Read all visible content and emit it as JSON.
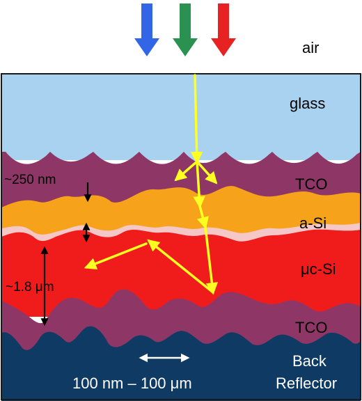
{
  "labels": {
    "air": "air",
    "glass": "glass",
    "tco_top": "TCO",
    "a_si": "a-Si",
    "uc_si": "μc-Si",
    "tco_bottom": "TCO",
    "back_reflector_line1": "Back",
    "back_reflector_line2": "Reflector",
    "tco_texture": "~250 nm",
    "uc_si_thickness": "~1.8 μm",
    "feature_size": "100 nm – 100 μm"
  },
  "incident_light": [
    {
      "name": "blue",
      "color": "#3366e6"
    },
    {
      "name": "green",
      "color": "#2b9150"
    },
    {
      "name": "red",
      "color": "#e62222"
    }
  ],
  "colors": {
    "glass": "#a8d2f0",
    "tco": "#8e3766",
    "a_si": "#f7a21b",
    "interlayer": "#f5c7c7",
    "uc_si": "#f01c1c",
    "back_reflector": "#0f3a63",
    "light_path": "#ffff22",
    "dimension_arrow": "#ffffff"
  }
}
